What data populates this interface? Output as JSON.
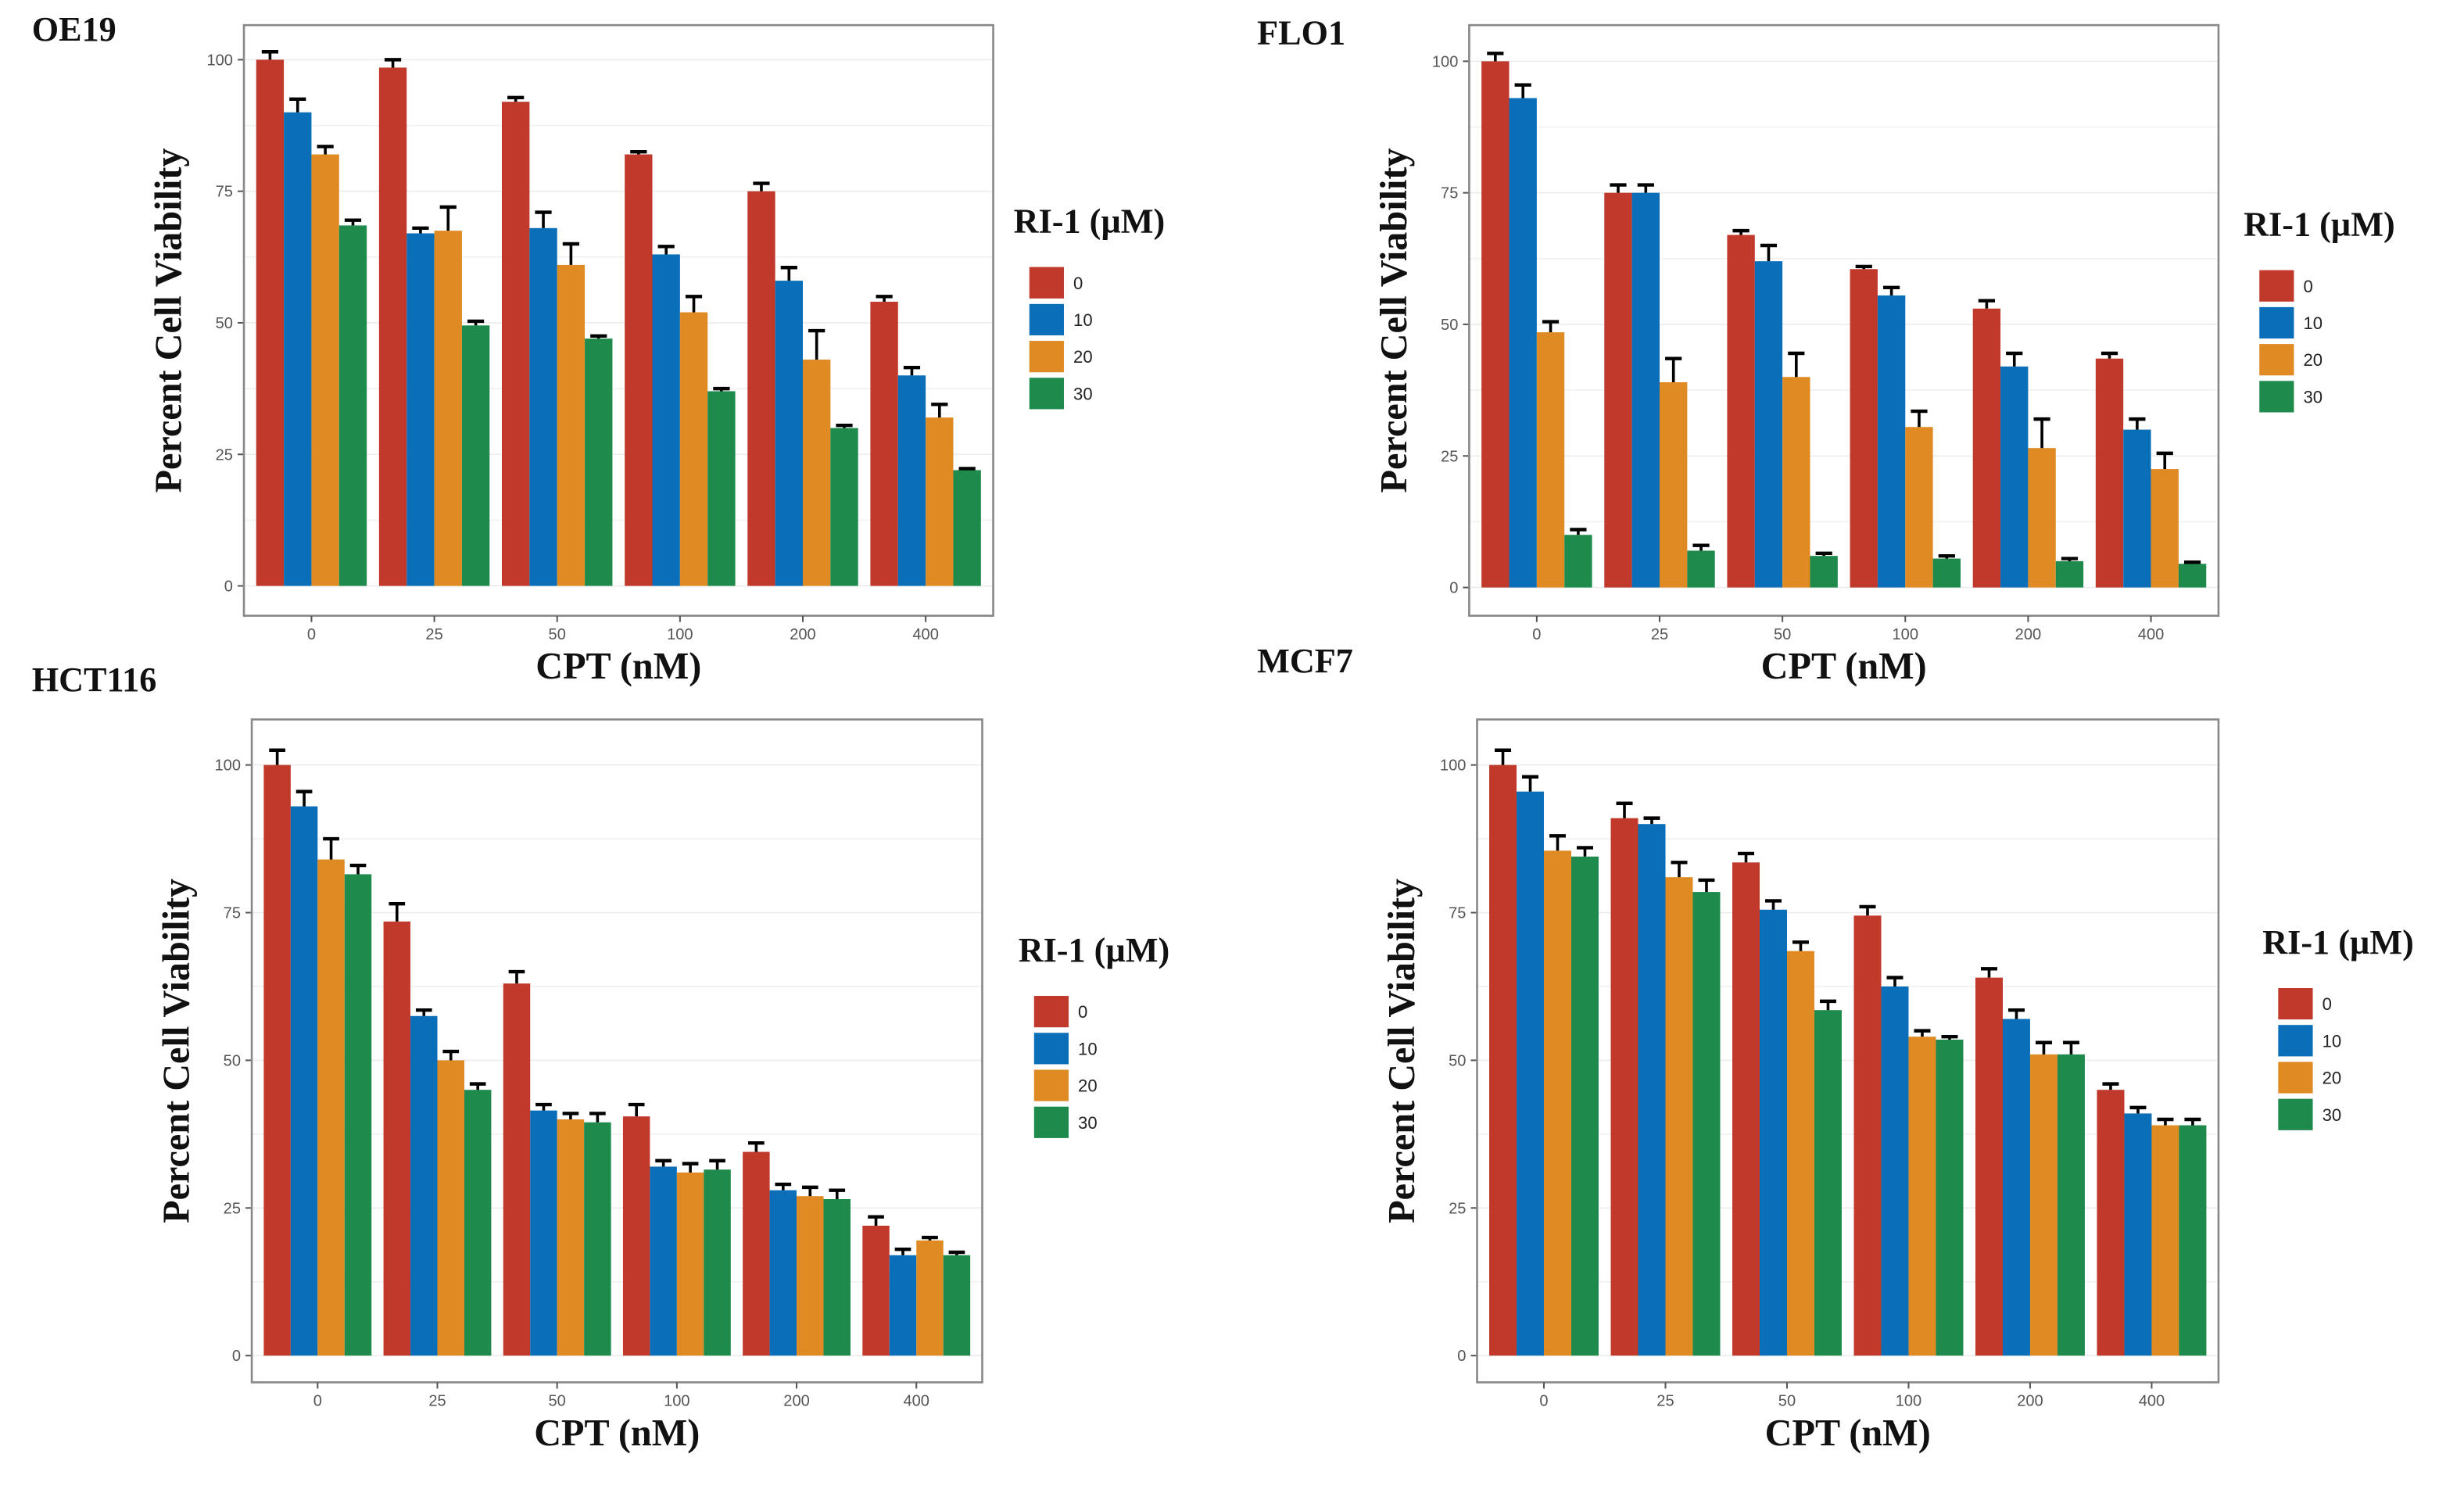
{
  "colors": {
    "0": "#c0392b",
    "10": "#0a6fb8",
    "20": "#e08a24",
    "30": "#1e8a4c"
  },
  "chart_data": [
    {
      "type": "bar",
      "title": "OE19",
      "xlabel": "CPT (nM)",
      "ylabel": "Percent Cell Viability",
      "legend_title": "RI-1 (µM)",
      "legend_position": "right",
      "ylim": [
        0,
        100
      ],
      "yticks": [
        "0",
        "25",
        "50",
        "75",
        "100"
      ],
      "categories": [
        "0",
        "25",
        "50",
        "100",
        "200",
        "400"
      ],
      "series": [
        {
          "name": "0",
          "values": [
            100,
            98.5,
            92,
            82,
            75,
            54
          ],
          "errors": [
            1.5,
            1.5,
            0.8,
            0.5,
            1.5,
            1
          ]
        },
        {
          "name": "10",
          "values": [
            90,
            67,
            68,
            63,
            58,
            40
          ],
          "errors": [
            2.5,
            1,
            3,
            1.5,
            2.5,
            1.5
          ]
        },
        {
          "name": "20",
          "values": [
            82,
            67.5,
            61,
            52,
            43,
            32
          ],
          "errors": [
            1.5,
            4.5,
            4,
            3,
            5.5,
            2.5
          ]
        },
        {
          "name": "30",
          "values": [
            68.5,
            49.5,
            47,
            37,
            30,
            22
          ],
          "errors": [
            1,
            0.8,
            0.5,
            0.5,
            0.5,
            0.3
          ]
        }
      ]
    },
    {
      "type": "bar",
      "title": "FLO1",
      "xlabel": "CPT (nM)",
      "ylabel": "Percent Cell Viability",
      "legend_title": "RI-1 (µM)",
      "legend_position": "right",
      "ylim": [
        0,
        100
      ],
      "yticks": [
        "0",
        "25",
        "50",
        "75",
        "100"
      ],
      "categories": [
        "0",
        "25",
        "50",
        "100",
        "200",
        "400"
      ],
      "series": [
        {
          "name": "0",
          "values": [
            100,
            75,
            67,
            60.5,
            53,
            43.5
          ],
          "errors": [
            1.5,
            1.5,
            0.8,
            0.5,
            1.5,
            1
          ]
        },
        {
          "name": "10",
          "values": [
            93,
            75,
            62,
            55.5,
            42,
            30
          ],
          "errors": [
            2.5,
            1.5,
            3,
            1.5,
            2.5,
            2
          ]
        },
        {
          "name": "20",
          "values": [
            48.5,
            39,
            40,
            30.5,
            26.5,
            22.5
          ],
          "errors": [
            2,
            4.5,
            4.5,
            3,
            5.5,
            3
          ]
        },
        {
          "name": "30",
          "values": [
            10,
            7,
            6,
            5.5,
            5,
            4.5
          ],
          "errors": [
            1,
            1,
            0.5,
            0.5,
            0.5,
            0.3
          ]
        }
      ]
    },
    {
      "type": "bar",
      "title": "HCT116",
      "xlabel": "CPT (nM)",
      "ylabel": "Percent Cell Viability",
      "legend_title": "RI-1 (µM)",
      "legend_position": "right",
      "ylim": [
        0,
        100
      ],
      "yticks": [
        "0",
        "25",
        "50",
        "75",
        "100"
      ],
      "categories": [
        "0",
        "25",
        "50",
        "100",
        "200",
        "400"
      ],
      "series": [
        {
          "name": "0",
          "values": [
            100,
            73.5,
            63,
            40.5,
            34.5,
            22
          ],
          "errors": [
            2.5,
            3,
            2,
            2,
            1.5,
            1.5
          ]
        },
        {
          "name": "10",
          "values": [
            93,
            57.5,
            41.5,
            32,
            28,
            17
          ],
          "errors": [
            2.5,
            1,
            1,
            1,
            1,
            1
          ]
        },
        {
          "name": "20",
          "values": [
            84,
            50,
            40,
            31,
            27,
            19.5
          ],
          "errors": [
            3.5,
            1.5,
            1,
            1.5,
            1.5,
            0.5
          ]
        },
        {
          "name": "30",
          "values": [
            81.5,
            45,
            39.5,
            31.5,
            26.5,
            17
          ],
          "errors": [
            1.5,
            1,
            1.5,
            1.5,
            1.5,
            0.5
          ]
        }
      ]
    },
    {
      "type": "bar",
      "title": "MCF7",
      "xlabel": "CPT (nM)",
      "ylabel": "Percent Cell Viability",
      "legend_title": "RI-1 (µM)",
      "legend_position": "right",
      "ylim": [
        0,
        100
      ],
      "yticks": [
        "0",
        "25",
        "50",
        "75",
        "100"
      ],
      "categories": [
        "0",
        "25",
        "50",
        "100",
        "200",
        "400"
      ],
      "series": [
        {
          "name": "0",
          "values": [
            100,
            91,
            83.5,
            74.5,
            64,
            45
          ],
          "errors": [
            2.5,
            2.5,
            1.5,
            1.5,
            1.5,
            1
          ]
        },
        {
          "name": "10",
          "values": [
            95.5,
            90,
            75.5,
            62.5,
            57,
            41
          ],
          "errors": [
            2.5,
            1,
            1.5,
            1.5,
            1.5,
            1
          ]
        },
        {
          "name": "20",
          "values": [
            85.5,
            81,
            68.5,
            54,
            51,
            39
          ],
          "errors": [
            2.5,
            2.5,
            1.5,
            1,
            2,
            1
          ]
        },
        {
          "name": "30",
          "values": [
            84.5,
            78.5,
            58.5,
            53.5,
            51,
            39
          ],
          "errors": [
            1.5,
            2,
            1.5,
            0.5,
            2,
            1
          ]
        }
      ]
    }
  ]
}
